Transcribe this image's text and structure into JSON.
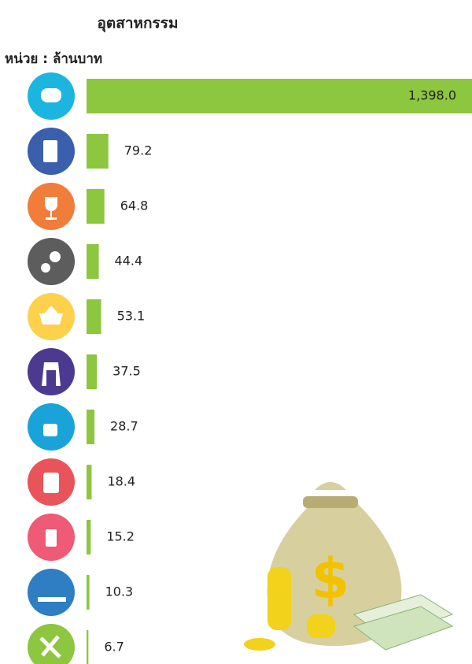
{
  "chart_data": {
    "type": "bar",
    "orientation": "horizontal",
    "title": "อุตสาหกรรม",
    "subtitle": "หน่วย : ล้านบาท",
    "categories": [
      null,
      null,
      null,
      null,
      null,
      null,
      null,
      null,
      null,
      null,
      null
    ],
    "values": [
      1398.0,
      79.2,
      64.8,
      44.4,
      53.1,
      37.5,
      28.7,
      18.4,
      15.2,
      10.3,
      6.7
    ],
    "value_labels": [
      "1,398.0",
      "79.2",
      "64.8",
      "44.4",
      "53.1",
      "37.5",
      "28.7",
      "18.4",
      "15.2",
      "10.3",
      "6.7"
    ],
    "color": "#8dc63f"
  }
}
